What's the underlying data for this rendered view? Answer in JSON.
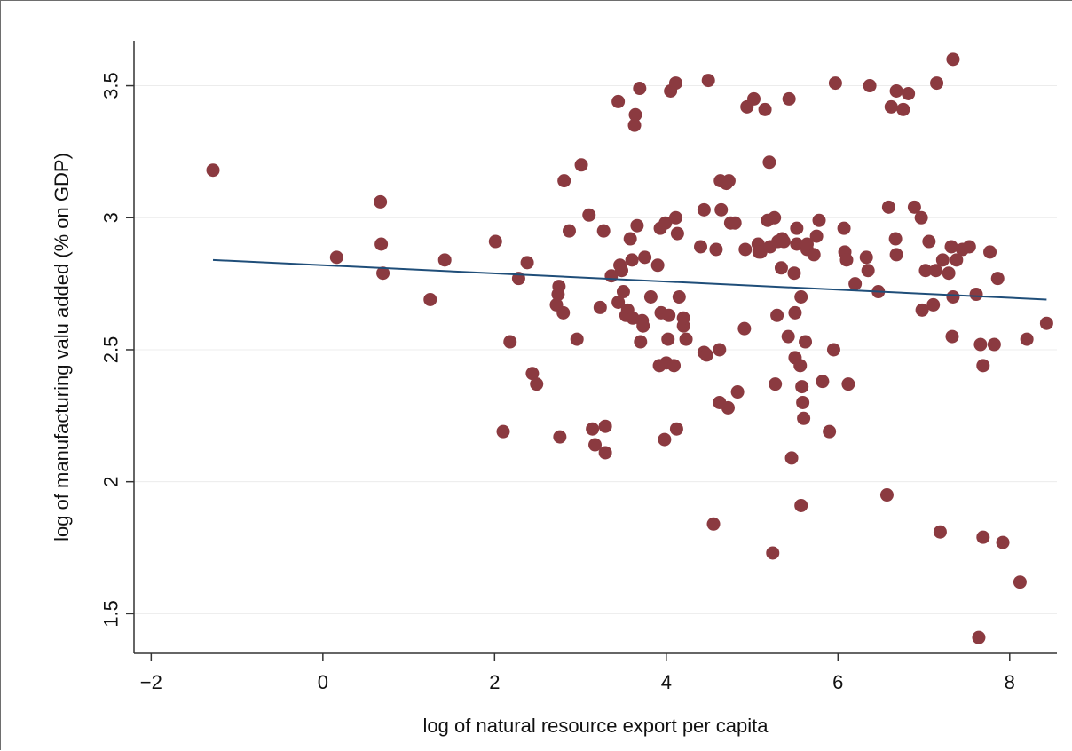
{
  "chart_data": {
    "type": "scatter",
    "title": "",
    "xlabel": "log of natural resource export per capita",
    "ylabel": "log of manufacturing valu added (% on GDP)",
    "xlim": [
      -2.2,
      8.55
    ],
    "ylim": [
      1.35,
      3.67
    ],
    "x_ticks": [
      -2,
      0,
      2,
      4,
      6,
      8
    ],
    "x_tick_labels": [
      "−2",
      "0",
      "2",
      "4",
      "6",
      "8"
    ],
    "y_ticks": [
      1.5,
      2,
      2.5,
      3,
      3.5
    ],
    "y_tick_labels": [
      "1.5",
      "2",
      "2.5",
      "3",
      "3.5"
    ],
    "grid": "horizontal",
    "legend": "none",
    "colors": {
      "points": "#8b3a40",
      "fit_line": "#1f4e79",
      "grid": "#ececec",
      "axis": "#333333"
    },
    "series": [
      {
        "kind": "points",
        "points": [
          [
            -1.28,
            3.18
          ],
          [
            0.16,
            2.85
          ],
          [
            0.67,
            3.06
          ],
          [
            0.68,
            2.9
          ],
          [
            0.7,
            2.79
          ],
          [
            1.25,
            2.69
          ],
          [
            1.42,
            2.84
          ],
          [
            2.01,
            2.91
          ],
          [
            2.1,
            2.19
          ],
          [
            2.18,
            2.53
          ],
          [
            2.28,
            2.77
          ],
          [
            2.38,
            2.83
          ],
          [
            2.44,
            2.41
          ],
          [
            2.49,
            2.37
          ],
          [
            2.72,
            2.67
          ],
          [
            2.74,
            2.71
          ],
          [
            2.75,
            2.74
          ],
          [
            2.76,
            2.17
          ],
          [
            2.8,
            2.64
          ],
          [
            2.81,
            3.14
          ],
          [
            2.87,
            2.95
          ],
          [
            2.96,
            2.54
          ],
          [
            3.01,
            3.2
          ],
          [
            3.1,
            3.01
          ],
          [
            3.14,
            2.2
          ],
          [
            3.17,
            2.14
          ],
          [
            3.23,
            2.66
          ],
          [
            3.27,
            2.95
          ],
          [
            3.29,
            2.21
          ],
          [
            3.29,
            2.11
          ],
          [
            3.36,
            2.78
          ],
          [
            3.44,
            3.44
          ],
          [
            3.44,
            2.68
          ],
          [
            3.46,
            2.82
          ],
          [
            3.48,
            2.8
          ],
          [
            3.5,
            2.72
          ],
          [
            3.53,
            2.63
          ],
          [
            3.55,
            2.65
          ],
          [
            3.58,
            2.92
          ],
          [
            3.6,
            2.84
          ],
          [
            3.61,
            2.62
          ],
          [
            3.63,
            3.35
          ],
          [
            3.64,
            3.39
          ],
          [
            3.66,
            2.97
          ],
          [
            3.69,
            3.49
          ],
          [
            3.7,
            2.53
          ],
          [
            3.72,
            2.61
          ],
          [
            3.73,
            2.59
          ],
          [
            3.75,
            2.85
          ],
          [
            3.82,
            2.7
          ],
          [
            3.9,
            2.82
          ],
          [
            3.92,
            2.44
          ],
          [
            3.93,
            2.96
          ],
          [
            3.94,
            2.64
          ],
          [
            3.98,
            2.16
          ],
          [
            3.99,
            2.98
          ],
          [
            4.0,
            2.45
          ],
          [
            4.02,
            2.54
          ],
          [
            4.03,
            2.63
          ],
          [
            4.05,
            3.48
          ],
          [
            4.09,
            2.44
          ],
          [
            4.11,
            3.51
          ],
          [
            4.11,
            3.0
          ],
          [
            4.12,
            2.2
          ],
          [
            4.13,
            2.94
          ],
          [
            4.15,
            2.7
          ],
          [
            4.2,
            2.59
          ],
          [
            4.2,
            2.62
          ],
          [
            4.23,
            2.54
          ],
          [
            4.4,
            2.89
          ],
          [
            4.44,
            2.49
          ],
          [
            4.44,
            3.03
          ],
          [
            4.47,
            2.48
          ],
          [
            4.49,
            3.52
          ],
          [
            4.55,
            1.84
          ],
          [
            4.58,
            2.88
          ],
          [
            4.62,
            2.5
          ],
          [
            4.62,
            2.3
          ],
          [
            4.63,
            3.14
          ],
          [
            4.64,
            3.03
          ],
          [
            4.7,
            3.13
          ],
          [
            4.72,
            2.28
          ],
          [
            4.73,
            3.14
          ],
          [
            4.75,
            2.98
          ],
          [
            4.8,
            2.98
          ],
          [
            4.83,
            2.34
          ],
          [
            4.91,
            2.58
          ],
          [
            4.92,
            2.88
          ],
          [
            4.94,
            3.42
          ],
          [
            5.02,
            3.45
          ],
          [
            5.07,
            2.9
          ],
          [
            5.08,
            2.87
          ],
          [
            5.1,
            2.87
          ],
          [
            5.15,
            3.41
          ],
          [
            5.18,
            2.99
          ],
          [
            5.2,
            3.21
          ],
          [
            5.21,
            2.89
          ],
          [
            5.24,
            1.73
          ],
          [
            5.26,
            3.0
          ],
          [
            5.27,
            2.37
          ],
          [
            5.29,
            2.63
          ],
          [
            5.3,
            2.91
          ],
          [
            5.34,
            2.81
          ],
          [
            5.35,
            2.92
          ],
          [
            5.37,
            2.91
          ],
          [
            5.42,
            2.55
          ],
          [
            5.43,
            3.45
          ],
          [
            5.46,
            2.09
          ],
          [
            5.49,
            2.79
          ],
          [
            5.5,
            2.64
          ],
          [
            5.5,
            2.47
          ],
          [
            5.52,
            2.9
          ],
          [
            5.52,
            2.96
          ],
          [
            5.56,
            2.44
          ],
          [
            5.57,
            2.7
          ],
          [
            5.57,
            1.91
          ],
          [
            5.58,
            2.36
          ],
          [
            5.59,
            2.3
          ],
          [
            5.6,
            2.24
          ],
          [
            5.62,
            2.53
          ],
          [
            5.64,
            2.88
          ],
          [
            5.64,
            2.9
          ],
          [
            5.72,
            2.86
          ],
          [
            5.75,
            2.93
          ],
          [
            5.78,
            2.99
          ],
          [
            5.82,
            2.38
          ],
          [
            5.9,
            2.19
          ],
          [
            5.95,
            2.5
          ],
          [
            5.97,
            3.51
          ],
          [
            6.07,
            2.96
          ],
          [
            6.08,
            2.87
          ],
          [
            6.1,
            2.84
          ],
          [
            6.12,
            2.37
          ],
          [
            6.2,
            2.75
          ],
          [
            6.33,
            2.85
          ],
          [
            6.35,
            2.8
          ],
          [
            6.37,
            3.5
          ],
          [
            6.47,
            2.72
          ],
          [
            6.57,
            1.95
          ],
          [
            6.59,
            3.04
          ],
          [
            6.62,
            3.42
          ],
          [
            6.67,
            2.92
          ],
          [
            6.68,
            3.48
          ],
          [
            6.68,
            2.86
          ],
          [
            6.76,
            3.41
          ],
          [
            6.82,
            3.47
          ],
          [
            6.89,
            3.04
          ],
          [
            6.97,
            3.0
          ],
          [
            6.98,
            2.65
          ],
          [
            7.02,
            2.8
          ],
          [
            7.06,
            2.91
          ],
          [
            7.11,
            2.67
          ],
          [
            7.14,
            2.8
          ],
          [
            7.15,
            3.51
          ],
          [
            7.19,
            1.81
          ],
          [
            7.22,
            2.84
          ],
          [
            7.29,
            2.79
          ],
          [
            7.32,
            2.89
          ],
          [
            7.33,
            2.55
          ],
          [
            7.34,
            2.7
          ],
          [
            7.34,
            3.6
          ],
          [
            7.38,
            2.84
          ],
          [
            7.45,
            2.88
          ],
          [
            7.53,
            2.89
          ],
          [
            7.61,
            2.71
          ],
          [
            7.66,
            2.52
          ],
          [
            7.69,
            1.79
          ],
          [
            7.69,
            2.44
          ],
          [
            7.77,
            2.87
          ],
          [
            7.82,
            2.52
          ],
          [
            7.86,
            2.77
          ],
          [
            7.92,
            1.77
          ],
          [
            8.12,
            1.62
          ],
          [
            8.2,
            2.54
          ],
          [
            8.43,
            2.6
          ],
          [
            7.64,
            1.41
          ]
        ]
      },
      {
        "kind": "line",
        "points": [
          [
            -1.28,
            2.84
          ],
          [
            8.43,
            2.69
          ]
        ]
      }
    ]
  }
}
